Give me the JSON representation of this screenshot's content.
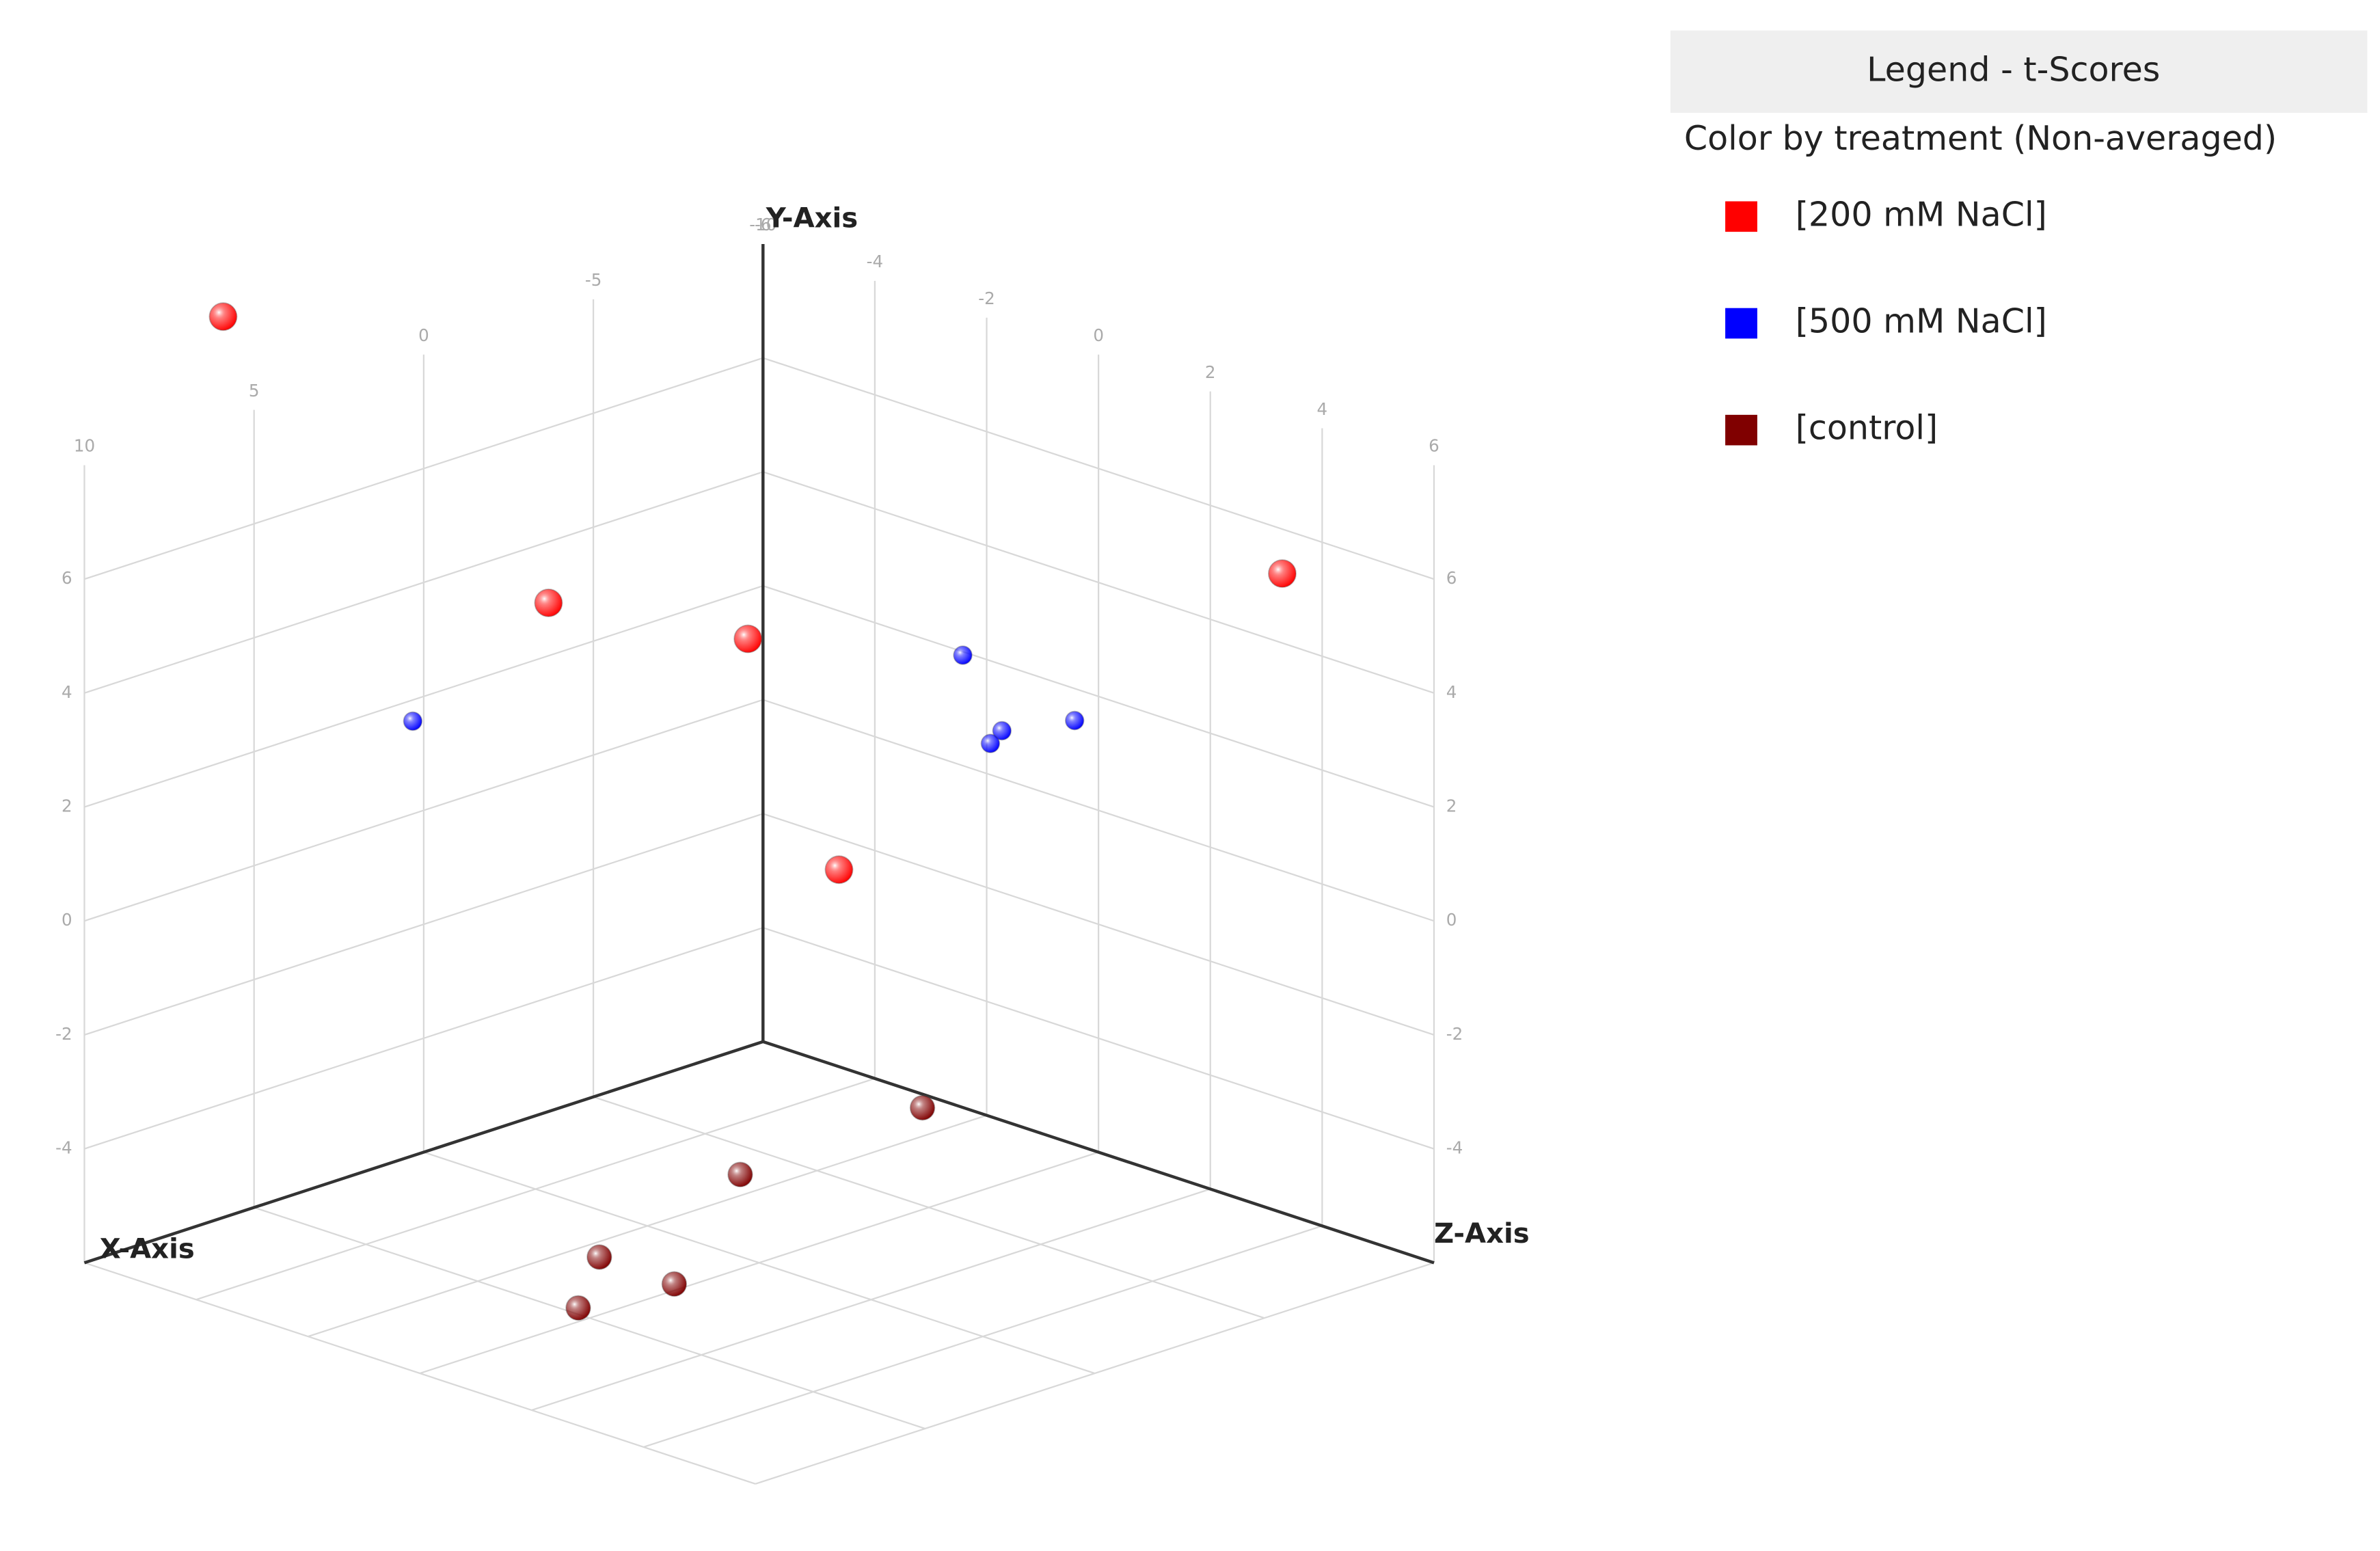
{
  "chart_data": {
    "type": "scatter3d",
    "legend_title": "Legend - t-Scores",
    "legend_subtitle": "Color by treatment (Non-averaged)",
    "x_label": "X-Axis",
    "y_label": "Y-Axis",
    "z_label": "Z-Axis",
    "xlim": [
      -10,
      10
    ],
    "ylim": [
      -6,
      8
    ],
    "zlim": [
      -6,
      6
    ],
    "xticks": [
      -10,
      -5,
      0,
      5,
      10
    ],
    "yticks": [
      -4,
      -2,
      0,
      2,
      4,
      6
    ],
    "zticks": [
      -6,
      -4,
      -2,
      0,
      2,
      4,
      6
    ],
    "grid": true,
    "series": [
      {
        "name": "[200 mM NaCl]",
        "color": "#ff0000",
        "radius": 9,
        "x": [
          6.9,
          -1.7,
          -5.6,
          -8.0,
          -4.0
        ],
        "y": [
          10.2,
          3.7,
          2.7,
          6.0,
          -0.2
        ],
        "z": [
          -5.4,
          -4.8,
          -3.6,
          4.5,
          -1.0
        ]
      },
      {
        "name": "[500 mM NaCl]",
        "color": "#0000ff",
        "radius": 6,
        "x": [
          2.3,
          -6.0,
          -6.0,
          -5.0,
          -6.0
        ],
        "y": [
          2.4,
          3.5,
          2.4,
          2.5,
          3.0
        ],
        "z": [
          -4.8,
          0.0,
          0.7,
          1.1,
          2.0
        ]
      },
      {
        "name": "[control]",
        "color": "#800000",
        "radius": 8,
        "x": [
          -5.8,
          -0.1,
          5.7,
          5.8,
          8.3
        ],
        "y": [
          -4.6,
          -4.6,
          -4.6,
          -4.6,
          -4.6
        ],
        "z": [
          -0.6,
          -0.4,
          0.6,
          2.0,
          1.8
        ]
      }
    ]
  }
}
